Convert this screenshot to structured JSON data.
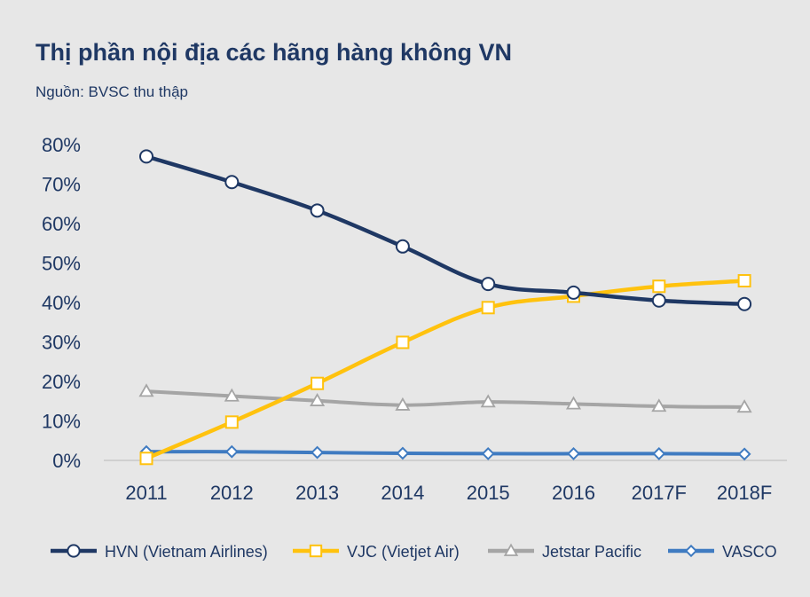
{
  "chart_data": {
    "type": "line",
    "title": "Thị phần nội địa các hãng hàng không VN",
    "subtitle": "Nguồn: BVSC thu thập",
    "categories": [
      "2011",
      "2012",
      "2013",
      "2014",
      "2015",
      "2016",
      "2017F",
      "2018F"
    ],
    "y_ticks": [
      "0%",
      "10%",
      "20%",
      "30%",
      "40%",
      "50%",
      "60%",
      "70%",
      "80%"
    ],
    "ylim": [
      0,
      80
    ],
    "y_unit": "%",
    "grid": false,
    "legend_position": "bottom",
    "series": [
      {
        "name": "HVN (Vietnam Airlines)",
        "marker": "circle",
        "color": "#1f3864",
        "values": [
          77,
          70.5,
          63.3,
          54.2,
          44.7,
          42.5,
          40.5,
          39.6
        ]
      },
      {
        "name": "VJC (Vietjet Air)",
        "marker": "square",
        "color": "#ffc20e",
        "values": [
          0.5,
          9.7,
          19.5,
          29.9,
          38.7,
          41.6,
          44.1,
          45.5
        ]
      },
      {
        "name": "Jetstar Pacific",
        "marker": "triangle",
        "color": "#a5a5a5",
        "values": [
          17.5,
          16.3,
          15.1,
          14.0,
          14.8,
          14.3,
          13.7,
          13.5
        ]
      },
      {
        "name": "VASCO",
        "marker": "diamond",
        "color": "#3f7bc1",
        "values": [
          2.2,
          2.2,
          2.0,
          1.8,
          1.7,
          1.7,
          1.7,
          1.6
        ]
      }
    ]
  }
}
